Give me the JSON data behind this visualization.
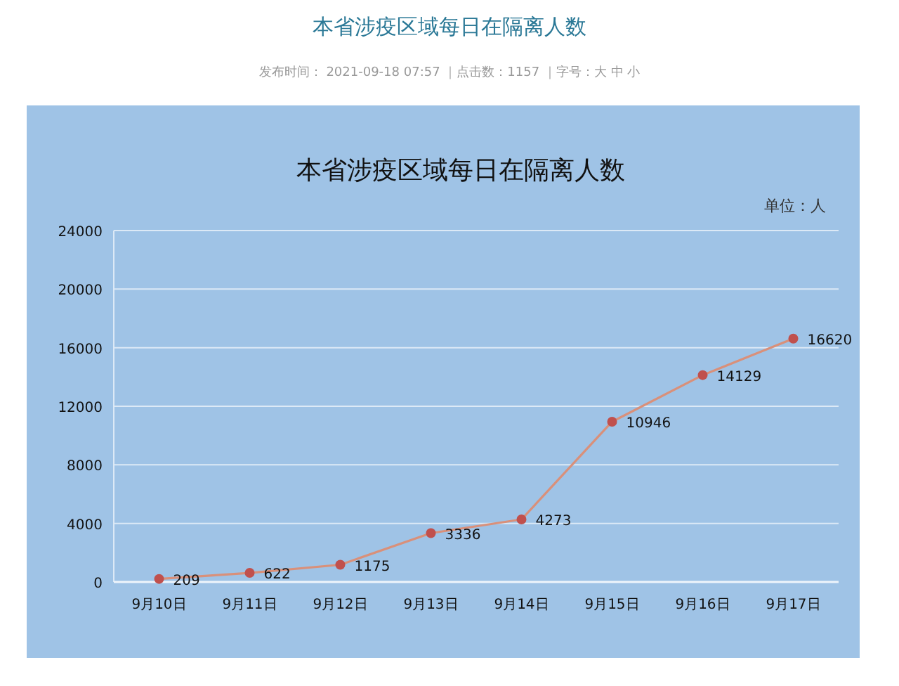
{
  "chart_data": {
    "type": "line",
    "title": "本省涉疫区域每日在隔离人数",
    "ylabel": "单位：人",
    "annotations": [
      "本省涉疫区域每日在隔离人数",
      "发布时间： 2021-09-18 07:57 ｜点击数：1157 ｜字号：大 中 小"
    ],
    "categories": [
      "9月10日",
      "9月11日",
      "9月12日",
      "9月13日",
      "9月14日",
      "9月15日",
      "9月16日",
      "9月17日"
    ],
    "series": [
      {
        "color": "#c0504d",
        "values": [
          209,
          622,
          1175,
          3336,
          4273,
          10946,
          14129,
          16620
        ]
      }
    ],
    "ylim": [
      0,
      24000
    ],
    "yticks": [
      0,
      4000,
      8000,
      12000,
      16000,
      20000,
      24000
    ],
    "grid": "y",
    "marker": "circle",
    "line_style": "solid",
    "data_labels": true
  }
}
